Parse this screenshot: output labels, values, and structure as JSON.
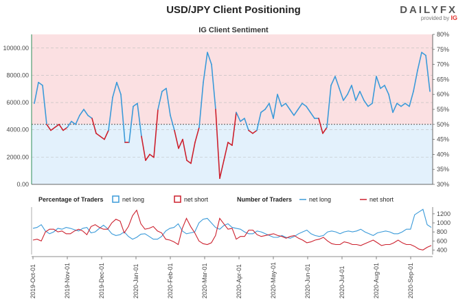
{
  "title": "USD/JPY Client Positioning",
  "subtitle": "IG Client Sentiment",
  "brand": {
    "name": "DAILYFX",
    "provided_by": "provided by",
    "partner": "IG"
  },
  "legend": {
    "percentage_label": "Percentage of Traders",
    "percentage_long": "net long",
    "percentage_short": "net short",
    "number_label": "Number of Traders",
    "number_long": "net long",
    "number_short": "net short"
  },
  "colors": {
    "long": "#3a9ad9",
    "short": "#cc1f2c",
    "long_fill": "#e3f1fc",
    "short_fill": "#fbe0e2"
  },
  "chart_data": [
    {
      "type": "line",
      "name": "price-and-sentiment",
      "left_axis_ticks": [
        "0.00",
        "2000.00",
        "4000.00",
        "6000.00",
        "8000.00",
        "10000.00"
      ],
      "left_ylim": [
        0,
        11000
      ],
      "right_axis_ticks": [
        "30%",
        "35%",
        "40%",
        "45%",
        "50%",
        "55%",
        "60%",
        "65%",
        "70%",
        "75%",
        "80%"
      ],
      "right_ylim": [
        30,
        80
      ],
      "threshold_pct": 50,
      "x_ticks": [
        "2019-Oct-01",
        "2019-Nov-01",
        "2019-Dec-01",
        "2020-Jan-01",
        "2020-Feb-01",
        "2020-Mar-01",
        "2020-Apr-01",
        "2020-May-01",
        "2020-Jun-01",
        "2020-Jul-01",
        "2020-Aug-01",
        "2020-Sep-01"
      ],
      "pct_long_weekly": [
        57,
        64,
        63,
        50,
        48,
        49,
        50,
        48,
        49,
        51,
        50,
        53,
        55,
        53,
        52,
        47,
        46,
        45,
        48,
        59,
        64,
        60,
        44,
        44,
        56,
        57,
        46,
        38,
        40,
        39,
        55,
        61,
        62,
        53,
        48,
        42,
        45,
        38,
        37,
        44,
        49,
        64,
        74,
        70,
        55,
        32,
        38,
        44,
        43,
        54,
        51,
        52,
        48,
        47,
        48,
        54,
        55,
        57,
        52,
        60,
        56,
        57,
        55,
        53,
        55,
        57,
        56,
        54,
        52,
        52,
        47,
        49,
        63,
        66,
        62,
        58,
        60,
        63,
        58,
        61,
        58,
        56,
        57,
        66,
        62,
        63,
        60,
        54,
        57,
        56,
        57,
        56,
        61,
        68,
        74,
        73,
        61
      ]
    },
    {
      "type": "line",
      "name": "number-of-traders",
      "right_axis_ticks": [
        "400",
        "600",
        "800",
        "1000",
        "1200"
      ],
      "ylim": [
        300,
        1350
      ],
      "series": [
        {
          "name": "net long",
          "values": [
            880,
            900,
            960,
            820,
            760,
            800,
            880,
            860,
            900,
            880,
            850,
            820,
            880,
            900,
            780,
            800,
            880,
            950,
            870,
            760,
            720,
            740,
            800,
            700,
            640,
            680,
            750,
            760,
            700,
            640,
            640,
            700,
            820,
            880,
            900,
            980,
            820,
            760,
            780,
            800,
            1000,
            1080,
            1100,
            1000,
            900,
            860,
            940,
            980,
            900,
            880,
            860,
            800,
            760,
            760,
            820,
            800,
            760,
            720,
            680,
            680,
            720,
            680,
            660,
            700,
            760,
            800,
            840,
            760,
            720,
            700,
            720,
            800,
            820,
            800,
            760,
            800,
            820,
            800,
            820,
            860,
            800,
            760,
            720,
            780,
            800,
            820,
            800,
            760,
            760,
            800,
            860,
            860,
            1180,
            1240,
            1300,
            960,
            900
          ]
        },
        {
          "name": "net short",
          "values": [
            620,
            640,
            600,
            800,
            860,
            860,
            800,
            820,
            760,
            760,
            820,
            860,
            820,
            740,
            920,
            960,
            900,
            860,
            860,
            1000,
            1080,
            1040,
            780,
            920,
            1160,
            1280,
            980,
            860,
            880,
            920,
            820,
            780,
            640,
            620,
            580,
            520,
            880,
            1100,
            920,
            780,
            600,
            540,
            520,
            560,
            720,
            1100,
            980,
            860,
            880,
            640,
            700,
            700,
            840,
            840,
            740,
            700,
            720,
            740,
            760,
            720,
            700,
            660,
            700,
            720,
            660,
            620,
            560,
            580,
            620,
            640,
            680,
            600,
            540,
            520,
            520,
            580,
            560,
            520,
            520,
            500,
            540,
            580,
            620,
            560,
            500,
            520,
            520,
            560,
            620,
            560,
            520,
            520,
            480,
            420,
            400,
            460,
            500
          ]
        }
      ]
    }
  ]
}
